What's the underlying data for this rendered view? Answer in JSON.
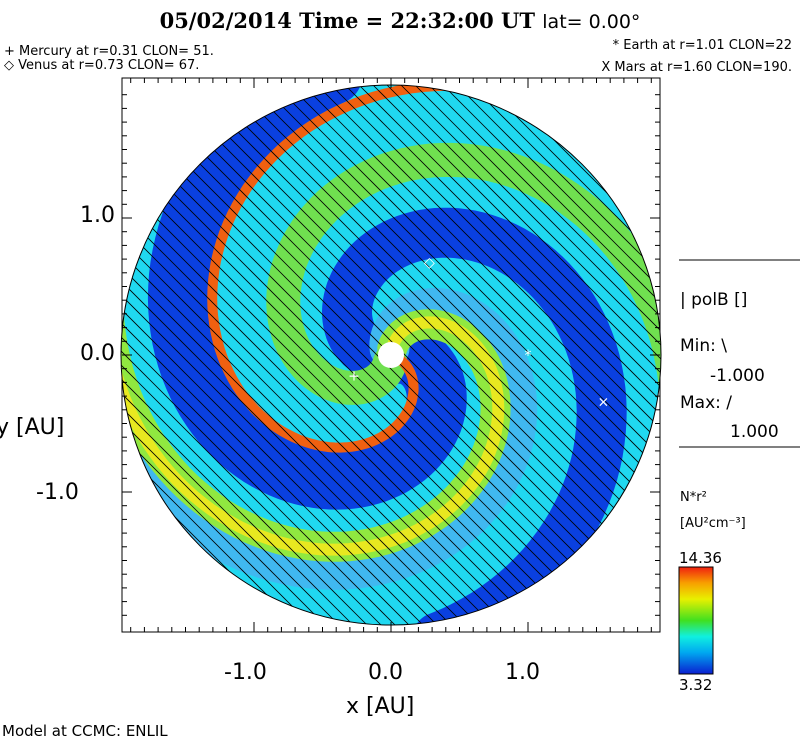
{
  "header": {
    "date": "05/02/2014",
    "time_label": "Time = 22:32:00 UT",
    "lat_label": "lat= 0.00°"
  },
  "planets": [
    {
      "marker": "+",
      "text": "+ Mercury at r=0.31 CLON= 51.",
      "r": 0.31,
      "clon": 51
    },
    {
      "marker": "◇",
      "text": "◇ Venus at r=0.73 CLON= 67.",
      "r": 0.73,
      "clon": 67
    },
    {
      "marker": "*",
      "text": "* Earth at  r=1.01 CLON=22",
      "r": 1.01,
      "clon": 22
    },
    {
      "marker": "X",
      "text": "X Mars at r=1.60 CLON=190.",
      "r": 1.6,
      "clon": 190
    }
  ],
  "legend": {
    "polb": "| polB []",
    "min_label": "Min: \\",
    "min_value": "-1.000",
    "max_label": "Max: /",
    "max_value": "1.000",
    "quantity": "N*r²",
    "units": "[AU²cm⁻³]",
    "cbar_max": "14.36",
    "cbar_min": "3.32"
  },
  "footer": "Model at CCMC: ENLIL",
  "chart_data": {
    "type": "heatmap",
    "title": "05/02/2014 Time = 22:32:00 UT lat= 0.00°",
    "xlabel": "x [AU]",
    "ylabel": "y [AU]",
    "xlim": [
      -1.96,
      1.96
    ],
    "ylim": [
      -1.96,
      1.96
    ],
    "xticks": [
      "-1.0",
      "0.0",
      "1.0"
    ],
    "yticks": [
      "1.0",
      "0.0",
      "-1.0"
    ],
    "tick_values": [
      -1.0,
      0.0,
      1.0
    ],
    "colorbar": {
      "min": 3.32,
      "max": 14.36,
      "label": "N*r² [AU²cm⁻³]"
    },
    "markers": [
      {
        "name": "Mercury",
        "x": -0.27,
        "y": -0.15
      },
      {
        "name": "Venus",
        "x": 0.28,
        "y": 0.68
      },
      {
        "name": "Earth",
        "x": 1.0,
        "y": 0.0
      },
      {
        "name": "Mars",
        "x": 1.55,
        "y": -0.34
      }
    ]
  }
}
